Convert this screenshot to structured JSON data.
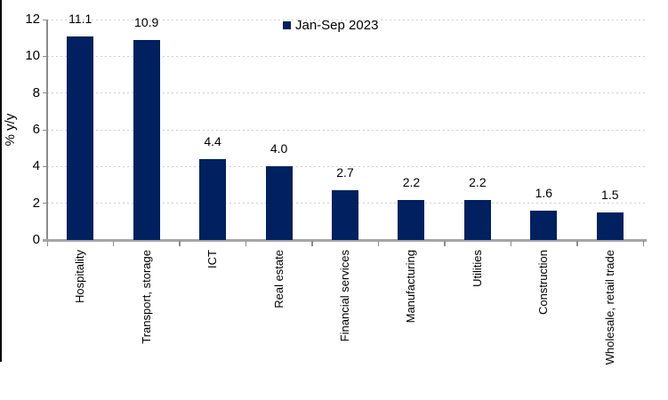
{
  "chart_data": {
    "type": "bar",
    "title": "",
    "legend_label": "Jan-Sep 2023",
    "legend_position": "top-center",
    "categories": [
      "Hospitality",
      "Transport, storage",
      "ICT",
      "Real estate",
      "Financial services",
      "Manufacturing",
      "Utilities",
      "Construction",
      "Wholesale, retail trade"
    ],
    "values": [
      11.1,
      10.9,
      4.4,
      4.0,
      2.7,
      2.2,
      2.2,
      1.6,
      1.5
    ],
    "value_labels": [
      "11.1",
      "10.9",
      "4.4",
      "4.0",
      "2.7",
      "2.2",
      "2.2",
      "1.6",
      "1.5"
    ],
    "xlabel": "",
    "ylabel": "% y/y",
    "ylim": [
      0,
      12
    ],
    "yticks": [
      0,
      2,
      4,
      6,
      8,
      10,
      12
    ],
    "grid": "horizontal-dotted",
    "colors": {
      "bar": "#002060",
      "axis_line": "#8c8c8c",
      "baseline": "#a6a6a6",
      "gridline": "#d0d0d0",
      "text": "#000000",
      "frame_border": "#000000"
    }
  }
}
